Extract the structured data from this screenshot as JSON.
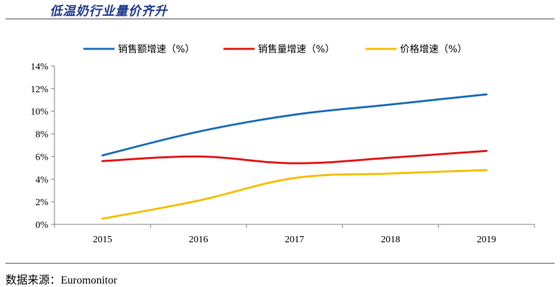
{
  "header": {
    "title": "低温奶行业量价齐升"
  },
  "footer": {
    "source_label": "数据来源：",
    "source_value": "Euromonitor"
  },
  "colors": {
    "series_1": "#1f6fb8",
    "series_2": "#e31a1c",
    "series_3": "#f5c000"
  },
  "chart_data": {
    "type": "line",
    "title": "",
    "xlabel": "",
    "ylabel": "",
    "x": [
      "2015",
      "2016",
      "2017",
      "2018",
      "2019"
    ],
    "ylim": [
      0,
      14
    ],
    "yticks": [
      "0%",
      "2%",
      "4%",
      "6%",
      "8%",
      "10%",
      "12%",
      "14%"
    ],
    "grid": false,
    "legend": "top",
    "series": [
      {
        "name": "销售额增速（%）",
        "values": [
          6.1,
          8.2,
          9.7,
          10.6,
          11.5
        ]
      },
      {
        "name": "销售量增速（%）",
        "values": [
          5.6,
          6.0,
          5.4,
          5.9,
          6.5
        ]
      },
      {
        "name": "价格增速（%）",
        "values": [
          0.5,
          2.1,
          4.1,
          4.5,
          4.8
        ]
      }
    ]
  }
}
